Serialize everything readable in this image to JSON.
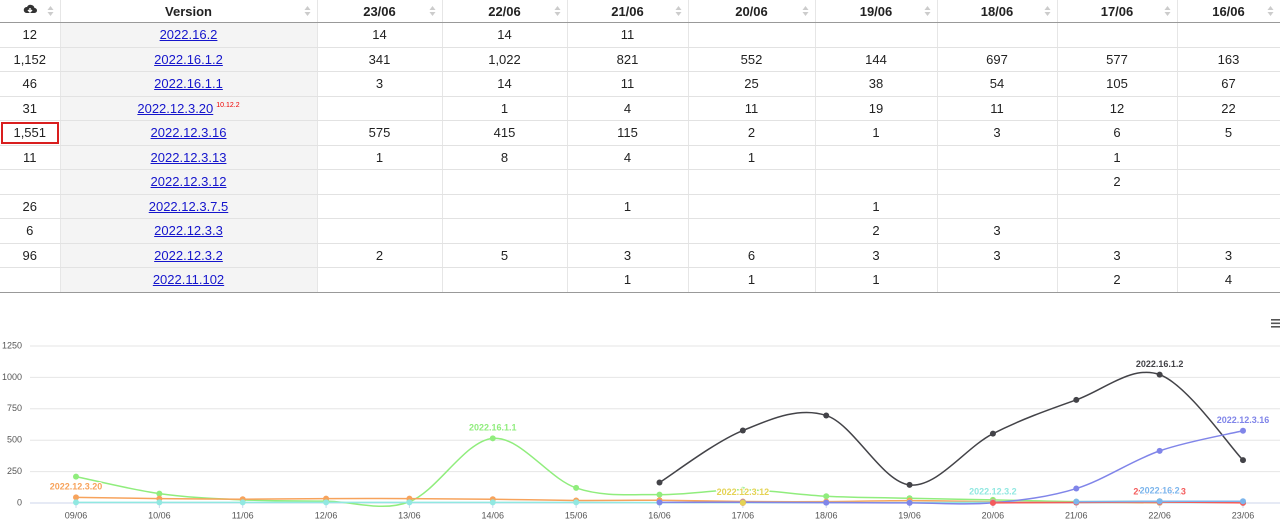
{
  "table": {
    "headers": [
      "Version",
      "23/06",
      "22/06",
      "21/06",
      "20/06",
      "19/06",
      "18/06",
      "17/06",
      "16/06"
    ],
    "rows": [
      {
        "downloads": "12",
        "version": "2022.16.2",
        "counts": [
          "14",
          "14",
          "11",
          null,
          null,
          null,
          null,
          null
        ]
      },
      {
        "downloads": "1,152",
        "version": "2022.16.1.2",
        "counts": [
          "341",
          "1,022",
          "821",
          "552",
          "144",
          "697",
          "577",
          "163"
        ]
      },
      {
        "downloads": "46",
        "version": "2022.16.1.1",
        "counts": [
          "3",
          "14",
          "11",
          "25",
          "38",
          "54",
          "105",
          "67"
        ]
      },
      {
        "downloads": "31",
        "version": "2022.12.3.20",
        "tag": "10.12.2",
        "counts": [
          null,
          "1",
          "4",
          "11",
          "19",
          "11",
          "12",
          "22"
        ]
      },
      {
        "downloads": "1,551",
        "version": "2022.12.3.16",
        "highlighted": true,
        "counts": [
          "575",
          "415",
          "115",
          "2",
          "1",
          "3",
          "6",
          "5"
        ]
      },
      {
        "downloads": "11",
        "version": "2022.12.3.13",
        "counts": [
          "1",
          "8",
          "4",
          "1",
          null,
          null,
          "1",
          null
        ]
      },
      {
        "downloads": null,
        "version": "2022.12.3.12",
        "counts": [
          null,
          null,
          null,
          null,
          null,
          null,
          "2",
          null
        ]
      },
      {
        "downloads": "26",
        "version": "2022.12.3.7.5",
        "counts": [
          null,
          null,
          "1",
          null,
          "1",
          null,
          null,
          null
        ]
      },
      {
        "downloads": "6",
        "version": "2022.12.3.3",
        "counts": [
          null,
          null,
          null,
          null,
          "2",
          "3",
          null,
          null
        ]
      },
      {
        "downloads": "96",
        "version": "2022.12.3.2",
        "counts": [
          "2",
          "5",
          "3",
          "6",
          "3",
          "3",
          "3",
          "3"
        ]
      },
      {
        "downloads": null,
        "version": "2022.11.102",
        "counts": [
          null,
          null,
          "1",
          "1",
          "1",
          null,
          "2",
          "4"
        ]
      }
    ]
  },
  "chart_data": {
    "type": "line",
    "categories": [
      "09/06",
      "10/06",
      "11/06",
      "12/06",
      "13/06",
      "14/06",
      "15/06",
      "16/06",
      "17/06",
      "18/06",
      "19/06",
      "20/06",
      "21/06",
      "22/06",
      "23/06"
    ],
    "ylim": [
      0,
      1250
    ],
    "yticks": [
      0,
      250,
      500,
      750,
      1000,
      1250
    ],
    "grid": true,
    "series": [
      {
        "name": "2022.16.1.2",
        "color": "#434348",
        "values": [
          null,
          null,
          null,
          null,
          null,
          null,
          null,
          163,
          577,
          697,
          144,
          552,
          821,
          1022,
          341
        ]
      },
      {
        "name": "2022.16.1.1",
        "color": "#90ed7d",
        "values": [
          210,
          75,
          25,
          15,
          10,
          515,
          120,
          67,
          105,
          54,
          38,
          25,
          11,
          14,
          3
        ]
      },
      {
        "name": "2022.12.3.20",
        "color": "#f7a35c",
        "values": [
          45,
          35,
          30,
          35,
          35,
          30,
          20,
          22,
          12,
          11,
          19,
          11,
          4,
          1,
          null
        ]
      },
      {
        "name": "2022.12.3.2",
        "color": "#91e8e1",
        "values": [
          5,
          5,
          5,
          5,
          5,
          5,
          5,
          3,
          3,
          3,
          3,
          6,
          3,
          5,
          2
        ]
      },
      {
        "name": "2022.12.3.16",
        "color": "#8085e9",
        "values": [
          null,
          null,
          null,
          null,
          null,
          null,
          null,
          5,
          6,
          3,
          1,
          2,
          115,
          415,
          575
        ]
      },
      {
        "name": "2022.12.3.13",
        "color": "#f45b5b",
        "values": [
          null,
          null,
          null,
          null,
          null,
          null,
          null,
          null,
          1,
          null,
          null,
          1,
          4,
          8,
          1
        ]
      },
      {
        "name": "2022.12.3.12",
        "color": "#e4d354",
        "values": [
          null,
          null,
          null,
          null,
          null,
          null,
          null,
          null,
          2,
          null,
          null,
          null,
          null,
          null,
          null
        ]
      },
      {
        "name": "2022.16.2",
        "color": "#7cb5ec",
        "values": [
          null,
          null,
          null,
          null,
          null,
          null,
          null,
          null,
          null,
          null,
          null,
          null,
          11,
          14,
          14
        ]
      }
    ]
  }
}
